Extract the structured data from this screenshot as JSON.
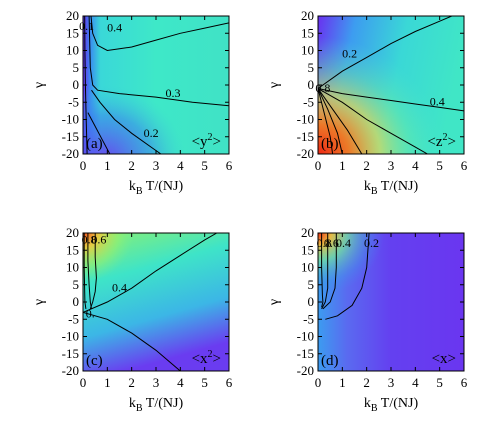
{
  "chart_data": [
    {
      "type": "heatmap",
      "panel_label": "(a)",
      "quantity_label": "<y",
      "quantity_exponent": "2",
      "quantity_close": ">",
      "xlabel_main": "k",
      "xlabel_sub": "B",
      "xlabel_rest": " T/(NJ)",
      "ylabel": "γ",
      "xlim": [
        0,
        6
      ],
      "ylim": [
        -20,
        20
      ],
      "x_ticks": [
        0,
        1,
        2,
        3,
        4,
        5,
        6
      ],
      "y_ticks": [
        20,
        15,
        10,
        5,
        0,
        -5,
        -10,
        -15,
        -20
      ],
      "contour_labels": [
        {
          "text": "0.1",
          "x": 0.15,
          "y": 16
        },
        {
          "text": "0.4",
          "x": 1.3,
          "y": 15.5
        },
        {
          "text": "0.3",
          "x": 3.7,
          "y": -3.5
        },
        {
          "text": "0.2",
          "x": 2.8,
          "y": -15
        }
      ],
      "contours": [
        [
          [
            0.07,
            20
          ],
          [
            0.08,
            10
          ],
          [
            0.1,
            0
          ],
          [
            0.13,
            -10
          ],
          [
            0.17,
            -20
          ]
        ],
        [
          [
            0.33,
            20
          ],
          [
            0.4,
            15
          ],
          [
            0.6,
            11.5
          ],
          [
            1.0,
            10
          ],
          [
            1.5,
            10.5
          ],
          [
            2.0,
            11
          ],
          [
            3.0,
            13
          ],
          [
            4.0,
            15
          ],
          [
            5.0,
            16.5
          ],
          [
            6.0,
            18
          ]
        ],
        [
          [
            0.25,
            20
          ],
          [
            0.3,
            5
          ],
          [
            0.4,
            0
          ],
          [
            0.6,
            -1.5
          ],
          [
            1.5,
            -2.5
          ],
          [
            3.0,
            -3.5
          ],
          [
            4.5,
            -5
          ],
          [
            6.0,
            -6
          ]
        ],
        [
          [
            0.35,
            -1.5
          ],
          [
            0.7,
            -5
          ],
          [
            1.3,
            -10
          ],
          [
            2.0,
            -14
          ],
          [
            2.8,
            -18
          ],
          [
            3.2,
            -20
          ]
        ],
        [
          [
            0.2,
            -8
          ],
          [
            0.5,
            -12
          ],
          [
            0.8,
            -16
          ],
          [
            1.1,
            -20
          ]
        ]
      ]
    },
    {
      "type": "heatmap",
      "panel_label": "(b)",
      "quantity_label": "<z",
      "quantity_exponent": "2",
      "quantity_close": ">",
      "xlabel_main": "k",
      "xlabel_sub": "B",
      "xlabel_rest": " T/(NJ)",
      "ylabel": "γ",
      "xlim": [
        0,
        6
      ],
      "ylim": [
        -20,
        20
      ],
      "x_ticks": [
        0,
        1,
        2,
        3,
        4,
        5,
        6
      ],
      "y_ticks": [
        20,
        15,
        10,
        5,
        0,
        -5,
        -10,
        -15,
        -20
      ],
      "contour_labels": [
        {
          "text": "0.2",
          "x": 1.3,
          "y": 8
        },
        {
          "text": "0.8",
          "x": 0.2,
          "y": -2
        },
        {
          "text": "0.4",
          "x": 4.9,
          "y": -6
        }
      ],
      "contours": [
        [
          [
            0.0,
            -1
          ],
          [
            1.0,
            4
          ],
          [
            2.0,
            8
          ],
          [
            3.0,
            12
          ],
          [
            4.0,
            15.5
          ],
          [
            5.0,
            18.5
          ],
          [
            5.5,
            20
          ]
        ],
        [
          [
            0.0,
            -1
          ],
          [
            1.0,
            -2.5
          ],
          [
            2.0,
            -3.5
          ],
          [
            3.0,
            -4.5
          ],
          [
            4.0,
            -5.5
          ],
          [
            5.0,
            -6.5
          ],
          [
            6.0,
            -7.5
          ]
        ],
        [
          [
            0.0,
            -1
          ],
          [
            1.0,
            -5
          ],
          [
            2.0,
            -10
          ],
          [
            3.0,
            -14
          ],
          [
            4.0,
            -18
          ],
          [
            4.5,
            -20
          ]
        ],
        [
          [
            0.0,
            -1
          ],
          [
            0.6,
            -7
          ],
          [
            1.2,
            -13
          ],
          [
            1.8,
            -20
          ]
        ],
        [
          [
            0.0,
            -1
          ],
          [
            0.4,
            -7
          ],
          [
            0.8,
            -14
          ],
          [
            1.0,
            -20
          ]
        ],
        [
          [
            0.0,
            -1
          ],
          [
            0.25,
            -8
          ],
          [
            0.5,
            -15
          ],
          [
            0.6,
            -20
          ]
        ]
      ]
    },
    {
      "type": "heatmap",
      "panel_label": "(c)",
      "quantity_label": "<x",
      "quantity_exponent": "2",
      "quantity_close": ">",
      "xlabel_main": "k",
      "xlabel_sub": "B",
      "xlabel_rest": " T/(NJ)",
      "ylabel": "γ",
      "xlim": [
        0,
        6
      ],
      "ylim": [
        -20,
        20
      ],
      "x_ticks": [
        0,
        1,
        2,
        3,
        4,
        5,
        6
      ],
      "y_ticks": [
        20,
        15,
        10,
        5,
        0,
        -5,
        -10,
        -15,
        -20
      ],
      "contour_labels": [
        {
          "text": "0.8",
          "x": 0.25,
          "y": 17
        },
        {
          "text": "0.6",
          "x": 0.65,
          "y": 17
        },
        {
          "text": "0.4",
          "x": 1.5,
          "y": 3
        },
        {
          "text": "0.",
          "x": 0.3,
          "y": -4.5
        }
      ],
      "contours": [
        [
          [
            0.05,
            20
          ],
          [
            0.05,
            10
          ],
          [
            0.08,
            0
          ],
          [
            0.12,
            -2
          ]
        ],
        [
          [
            0.2,
            20
          ],
          [
            0.2,
            12
          ],
          [
            0.25,
            5
          ],
          [
            0.3,
            0
          ],
          [
            0.35,
            -2
          ]
        ],
        [
          [
            0.5,
            20
          ],
          [
            0.5,
            13
          ],
          [
            0.55,
            7
          ],
          [
            0.5,
            3
          ],
          [
            0.4,
            0
          ],
          [
            0.3,
            -2
          ]
        ],
        [
          [
            0.0,
            -3
          ],
          [
            1.0,
            0
          ],
          [
            2.0,
            4
          ],
          [
            3.0,
            9
          ],
          [
            4.0,
            13.5
          ],
          [
            5.0,
            18
          ],
          [
            5.5,
            20
          ]
        ],
        [
          [
            0.0,
            -3
          ],
          [
            1.0,
            -5
          ],
          [
            2.0,
            -9
          ],
          [
            3.0,
            -14
          ],
          [
            4.0,
            -20
          ]
        ]
      ]
    },
    {
      "type": "heatmap",
      "panel_label": "(d)",
      "quantity_label": "<x>",
      "quantity_exponent": "",
      "quantity_close": "",
      "xlabel_main": "k",
      "xlabel_sub": "B",
      "xlabel_rest": " T/(NJ)",
      "ylabel": "γ",
      "xlim": [
        0,
        6
      ],
      "ylim": [
        -20,
        20
      ],
      "x_ticks": [
        0,
        1,
        2,
        3,
        4,
        5,
        6
      ],
      "y_ticks": [
        20,
        15,
        10,
        5,
        0,
        -5,
        -10,
        -15,
        -20
      ],
      "contour_labels": [
        {
          "text": "0.8",
          "x": 0.25,
          "y": 16
        },
        {
          "text": "0.6",
          "x": 0.55,
          "y": 16
        },
        {
          "text": "0.4",
          "x": 1.05,
          "y": 16
        },
        {
          "text": "0.2",
          "x": 2.2,
          "y": 16
        }
      ],
      "contours": [
        [
          [
            0.15,
            20
          ],
          [
            0.15,
            10
          ],
          [
            0.18,
            2
          ],
          [
            0.2,
            0
          ],
          [
            0.15,
            -1.5
          ]
        ],
        [
          [
            0.4,
            20
          ],
          [
            0.4,
            10
          ],
          [
            0.4,
            4
          ],
          [
            0.3,
            0
          ],
          [
            0.15,
            -2
          ]
        ],
        [
          [
            0.75,
            20
          ],
          [
            0.75,
            10
          ],
          [
            0.7,
            4
          ],
          [
            0.5,
            0
          ],
          [
            0.2,
            -2
          ]
        ],
        [
          [
            2.1,
            20
          ],
          [
            2.0,
            10
          ],
          [
            1.8,
            4
          ],
          [
            1.4,
            -1
          ],
          [
            0.8,
            -4
          ],
          [
            0.3,
            -5
          ]
        ]
      ]
    }
  ]
}
